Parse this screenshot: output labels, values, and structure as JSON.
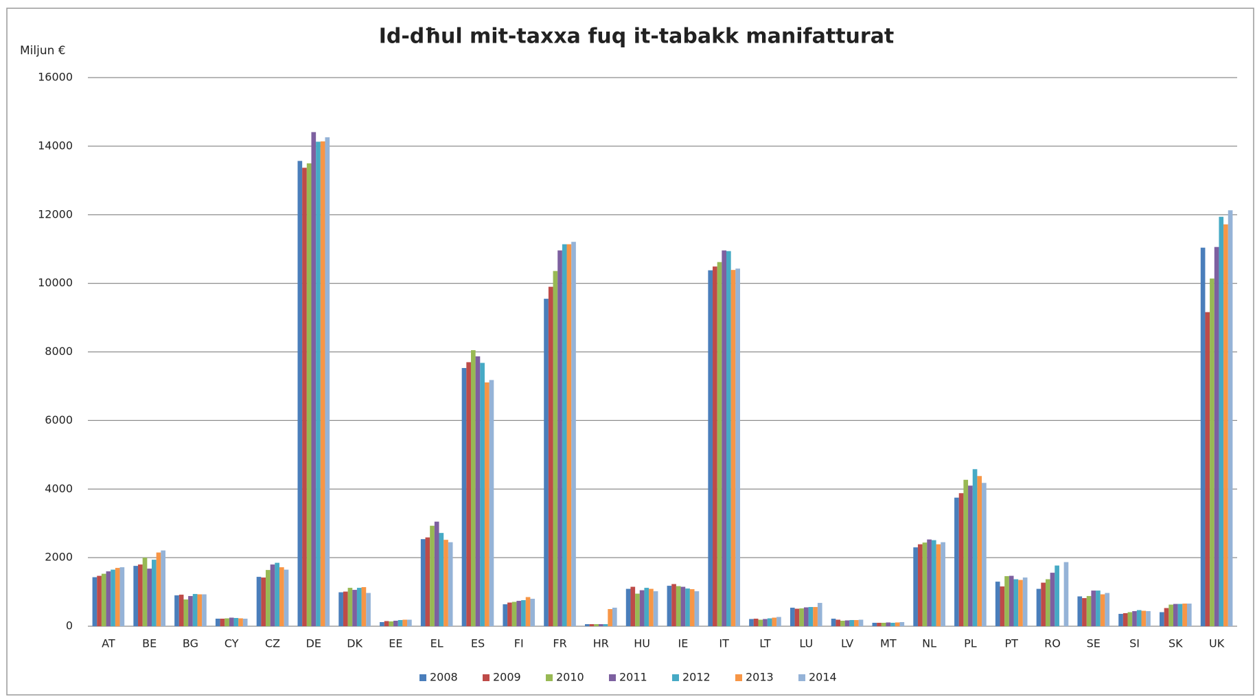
{
  "chart_data": {
    "type": "bar",
    "title": "Id-dħul mit-taxxa fuq it-tabakk manifatturat",
    "y_label": "Miljun €",
    "categories": [
      "AT",
      "BE",
      "BG",
      "CY",
      "CZ",
      "DE",
      "DK",
      "EE",
      "EL",
      "ES",
      "FI",
      "FR",
      "HR",
      "HU",
      "IE",
      "IT",
      "LT",
      "LU",
      "LV",
      "MT",
      "NL",
      "PL",
      "PT",
      "RO",
      "SE",
      "SI",
      "SK",
      "UK"
    ],
    "series": [
      {
        "name": "2008",
        "color": "#4a7ebb",
        "values": [
          1430,
          1760,
          900,
          220,
          1440,
          13570,
          990,
          120,
          2540,
          7530,
          640,
          9550,
          60,
          1090,
          1180,
          10380,
          210,
          540,
          220,
          100,
          2300,
          3750,
          1300,
          1090,
          870,
          360,
          410,
          11040
        ]
      },
      {
        "name": "2009",
        "color": "#be4b48",
        "values": [
          1470,
          1800,
          920,
          220,
          1420,
          13370,
          1010,
          150,
          2590,
          7700,
          690,
          9900,
          60,
          1150,
          1230,
          10490,
          220,
          510,
          190,
          100,
          2390,
          3880,
          1160,
          1270,
          820,
          380,
          530,
          9160
        ]
      },
      {
        "name": "2010",
        "color": "#98b954",
        "values": [
          1530,
          2000,
          780,
          230,
          1640,
          13500,
          1120,
          140,
          2930,
          8050,
          710,
          10360,
          60,
          950,
          1170,
          10620,
          190,
          520,
          160,
          100,
          2440,
          4270,
          1460,
          1370,
          880,
          410,
          630,
          10140
        ]
      },
      {
        "name": "2011",
        "color": "#7d60a0",
        "values": [
          1600,
          1680,
          880,
          250,
          1800,
          14410,
          1060,
          160,
          3050,
          7870,
          740,
          10960,
          60,
          1050,
          1150,
          10960,
          210,
          550,
          170,
          110,
          2530,
          4100,
          1470,
          1560,
          1040,
          440,
          650,
          11060
        ]
      },
      {
        "name": "2012",
        "color": "#46aac5",
        "values": [
          1650,
          1940,
          940,
          240,
          1850,
          14130,
          1120,
          180,
          2720,
          7680,
          760,
          11140,
          60,
          1120,
          1100,
          10940,
          230,
          560,
          180,
          100,
          2510,
          4580,
          1370,
          1770,
          1040,
          470,
          650,
          11940
        ]
      },
      {
        "name": "2013",
        "color": "#f79646",
        "values": [
          1700,
          2150,
          930,
          230,
          1720,
          14140,
          1140,
          190,
          2520,
          7110,
          850,
          11140,
          500,
          1090,
          1080,
          10390,
          250,
          560,
          180,
          110,
          2390,
          4380,
          1350,
          null,
          930,
          450,
          660,
          11720
        ]
      },
      {
        "name": "2014",
        "color": "#95b3d7",
        "values": [
          1720,
          2210,
          930,
          220,
          1650,
          14260,
          970,
          190,
          2450,
          7180,
          800,
          11210,
          540,
          1020,
          1020,
          10430,
          270,
          680,
          190,
          120,
          2450,
          4180,
          1420,
          1870,
          970,
          440,
          660,
          12130
        ]
      }
    ],
    "ylim": [
      0,
      16000
    ],
    "yticks": [
      0,
      2000,
      4000,
      6000,
      8000,
      10000,
      12000,
      14000,
      16000
    ],
    "grid": true,
    "legend": "bottom"
  }
}
